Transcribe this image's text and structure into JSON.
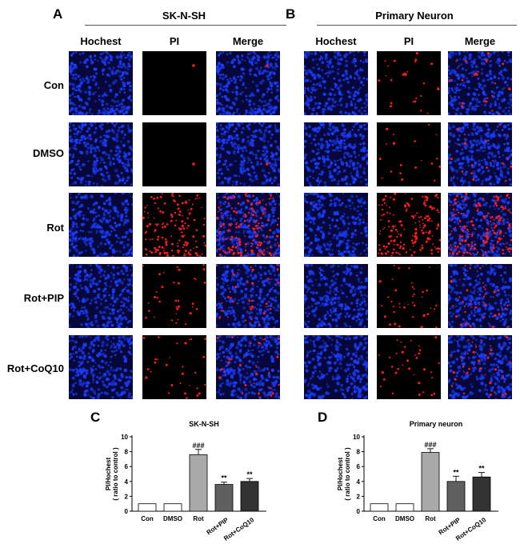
{
  "figure": {
    "panel_a": {
      "letter": "A",
      "title": "SK-N-SH",
      "columns": [
        "Hochest",
        "PI",
        "Merge"
      ],
      "rows": [
        "Con",
        "DMSO",
        "Rot",
        "Rot+PIP",
        "Rot+CoQ10"
      ],
      "pi_cell_counts": [
        1,
        1,
        150,
        35,
        30
      ]
    },
    "panel_b": {
      "letter": "B",
      "title": "Primary Neuron",
      "columns": [
        "Hochest",
        "PI",
        "Merge"
      ],
      "pi_cell_counts": [
        25,
        20,
        170,
        40,
        35
      ]
    },
    "colors": {
      "background": "#000000",
      "hoechst": "#1a3cff",
      "pi": "#ff1a1a"
    }
  },
  "chart_data": [
    {
      "type": "bar",
      "panel": "C",
      "title": "SK-N-SH",
      "categories": [
        "Con",
        "DMSO",
        "Rot",
        "Rot+PIP",
        "Rot+CoQ10"
      ],
      "values": [
        1.0,
        1.0,
        7.6,
        3.6,
        4.0
      ],
      "errors": [
        0.05,
        0.05,
        0.7,
        0.3,
        0.4
      ],
      "significance": [
        "",
        "",
        "###",
        "**",
        "**"
      ],
      "ylabel_line1": "PI/Hochest",
      "ylabel_line2": "( ratio to control )",
      "ylim": [
        0,
        10
      ],
      "yticks": [
        "0",
        "2",
        "4",
        "6",
        "8",
        "10"
      ],
      "bar_colors": [
        "#ffffff",
        "#ffffff",
        "#a9a9a9",
        "#5f5f5f",
        "#333333"
      ]
    },
    {
      "type": "bar",
      "panel": "D",
      "title": "Primary neuron",
      "categories": [
        "Con",
        "DMSO",
        "Rot",
        "Rot+PIP",
        "Rot+CoQ10"
      ],
      "values": [
        1.0,
        1.0,
        7.9,
        4.0,
        4.6
      ],
      "errors": [
        0.05,
        0.05,
        0.5,
        0.7,
        0.6
      ],
      "significance": [
        "",
        "",
        "###",
        "**",
        "**"
      ],
      "ylabel_line1": "PI/Hochest",
      "ylabel_line2": "( ratio to control )",
      "ylim": [
        0,
        10
      ],
      "yticks": [
        "0",
        "2",
        "4",
        "6",
        "8",
        "10"
      ],
      "bar_colors": [
        "#ffffff",
        "#ffffff",
        "#a9a9a9",
        "#5f5f5f",
        "#333333"
      ]
    }
  ]
}
